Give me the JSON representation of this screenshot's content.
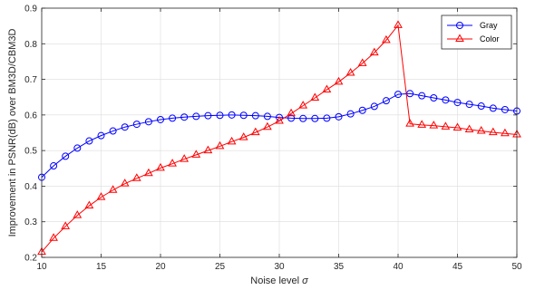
{
  "chart_data": {
    "type": "line",
    "xlabel": "Noise level",
    "xlabel_symbol": "σ",
    "ylabel": "Improvement in PSNR(dB) over BM3D/CBM3D",
    "xlim": [
      10,
      50
    ],
    "ylim": [
      0.2,
      0.9
    ],
    "xticks": [
      10,
      15,
      20,
      25,
      30,
      35,
      40,
      45,
      50
    ],
    "yticks": [
      0.2,
      0.3,
      0.4,
      0.5,
      0.6,
      0.7,
      0.8,
      0.9
    ],
    "grid": true,
    "legend_position": "top-right",
    "x": [
      10,
      11,
      12,
      13,
      14,
      15,
      16,
      17,
      18,
      19,
      20,
      21,
      22,
      23,
      24,
      25,
      26,
      27,
      28,
      29,
      30,
      31,
      32,
      33,
      34,
      35,
      36,
      37,
      38,
      39,
      40,
      41,
      42,
      43,
      44,
      45,
      46,
      47,
      48,
      49,
      50
    ],
    "series": [
      {
        "name": "Gray",
        "color": "#0000ff",
        "marker": "circle",
        "values": [
          0.425,
          0.457,
          0.484,
          0.507,
          0.527,
          0.542,
          0.555,
          0.566,
          0.574,
          0.581,
          0.587,
          0.591,
          0.594,
          0.596,
          0.598,
          0.599,
          0.6,
          0.599,
          0.598,
          0.596,
          0.593,
          0.591,
          0.59,
          0.59,
          0.591,
          0.595,
          0.603,
          0.613,
          0.624,
          0.64,
          0.658,
          0.66,
          0.654,
          0.648,
          0.642,
          0.635,
          0.63,
          0.625,
          0.619,
          0.615,
          0.611
        ]
      },
      {
        "name": "Color",
        "color": "#ff0000",
        "marker": "triangle",
        "values": [
          0.215,
          0.254,
          0.287,
          0.318,
          0.345,
          0.369,
          0.389,
          0.407,
          0.422,
          0.436,
          0.451,
          0.463,
          0.476,
          0.488,
          0.5,
          0.512,
          0.525,
          0.537,
          0.551,
          0.566,
          0.583,
          0.604,
          0.626,
          0.648,
          0.671,
          0.693,
          0.718,
          0.745,
          0.775,
          0.81,
          0.852,
          0.575,
          0.572,
          0.57,
          0.567,
          0.564,
          0.559,
          0.555,
          0.551,
          0.548,
          0.545
        ]
      }
    ]
  }
}
